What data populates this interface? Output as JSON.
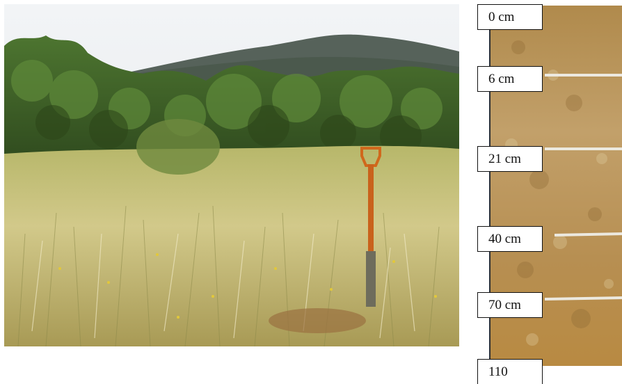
{
  "landscape_photo": {
    "description_icon": "meadow-with-spade-photo",
    "colors": {
      "sky": "#eef1f4",
      "hill": "#4d5a52",
      "forest": "#3e5d2a",
      "grass": "#c9c07a"
    }
  },
  "soil_profile": {
    "colors": {
      "soil": "#b78f4e",
      "soil_dark": "#8f6a35",
      "marker": "#e9e6dc",
      "edge": "#2a2f36"
    },
    "depth_labels": [
      "0 cm",
      "6 cm",
      "21 cm",
      "40 cm",
      "70 cm",
      "110"
    ]
  }
}
